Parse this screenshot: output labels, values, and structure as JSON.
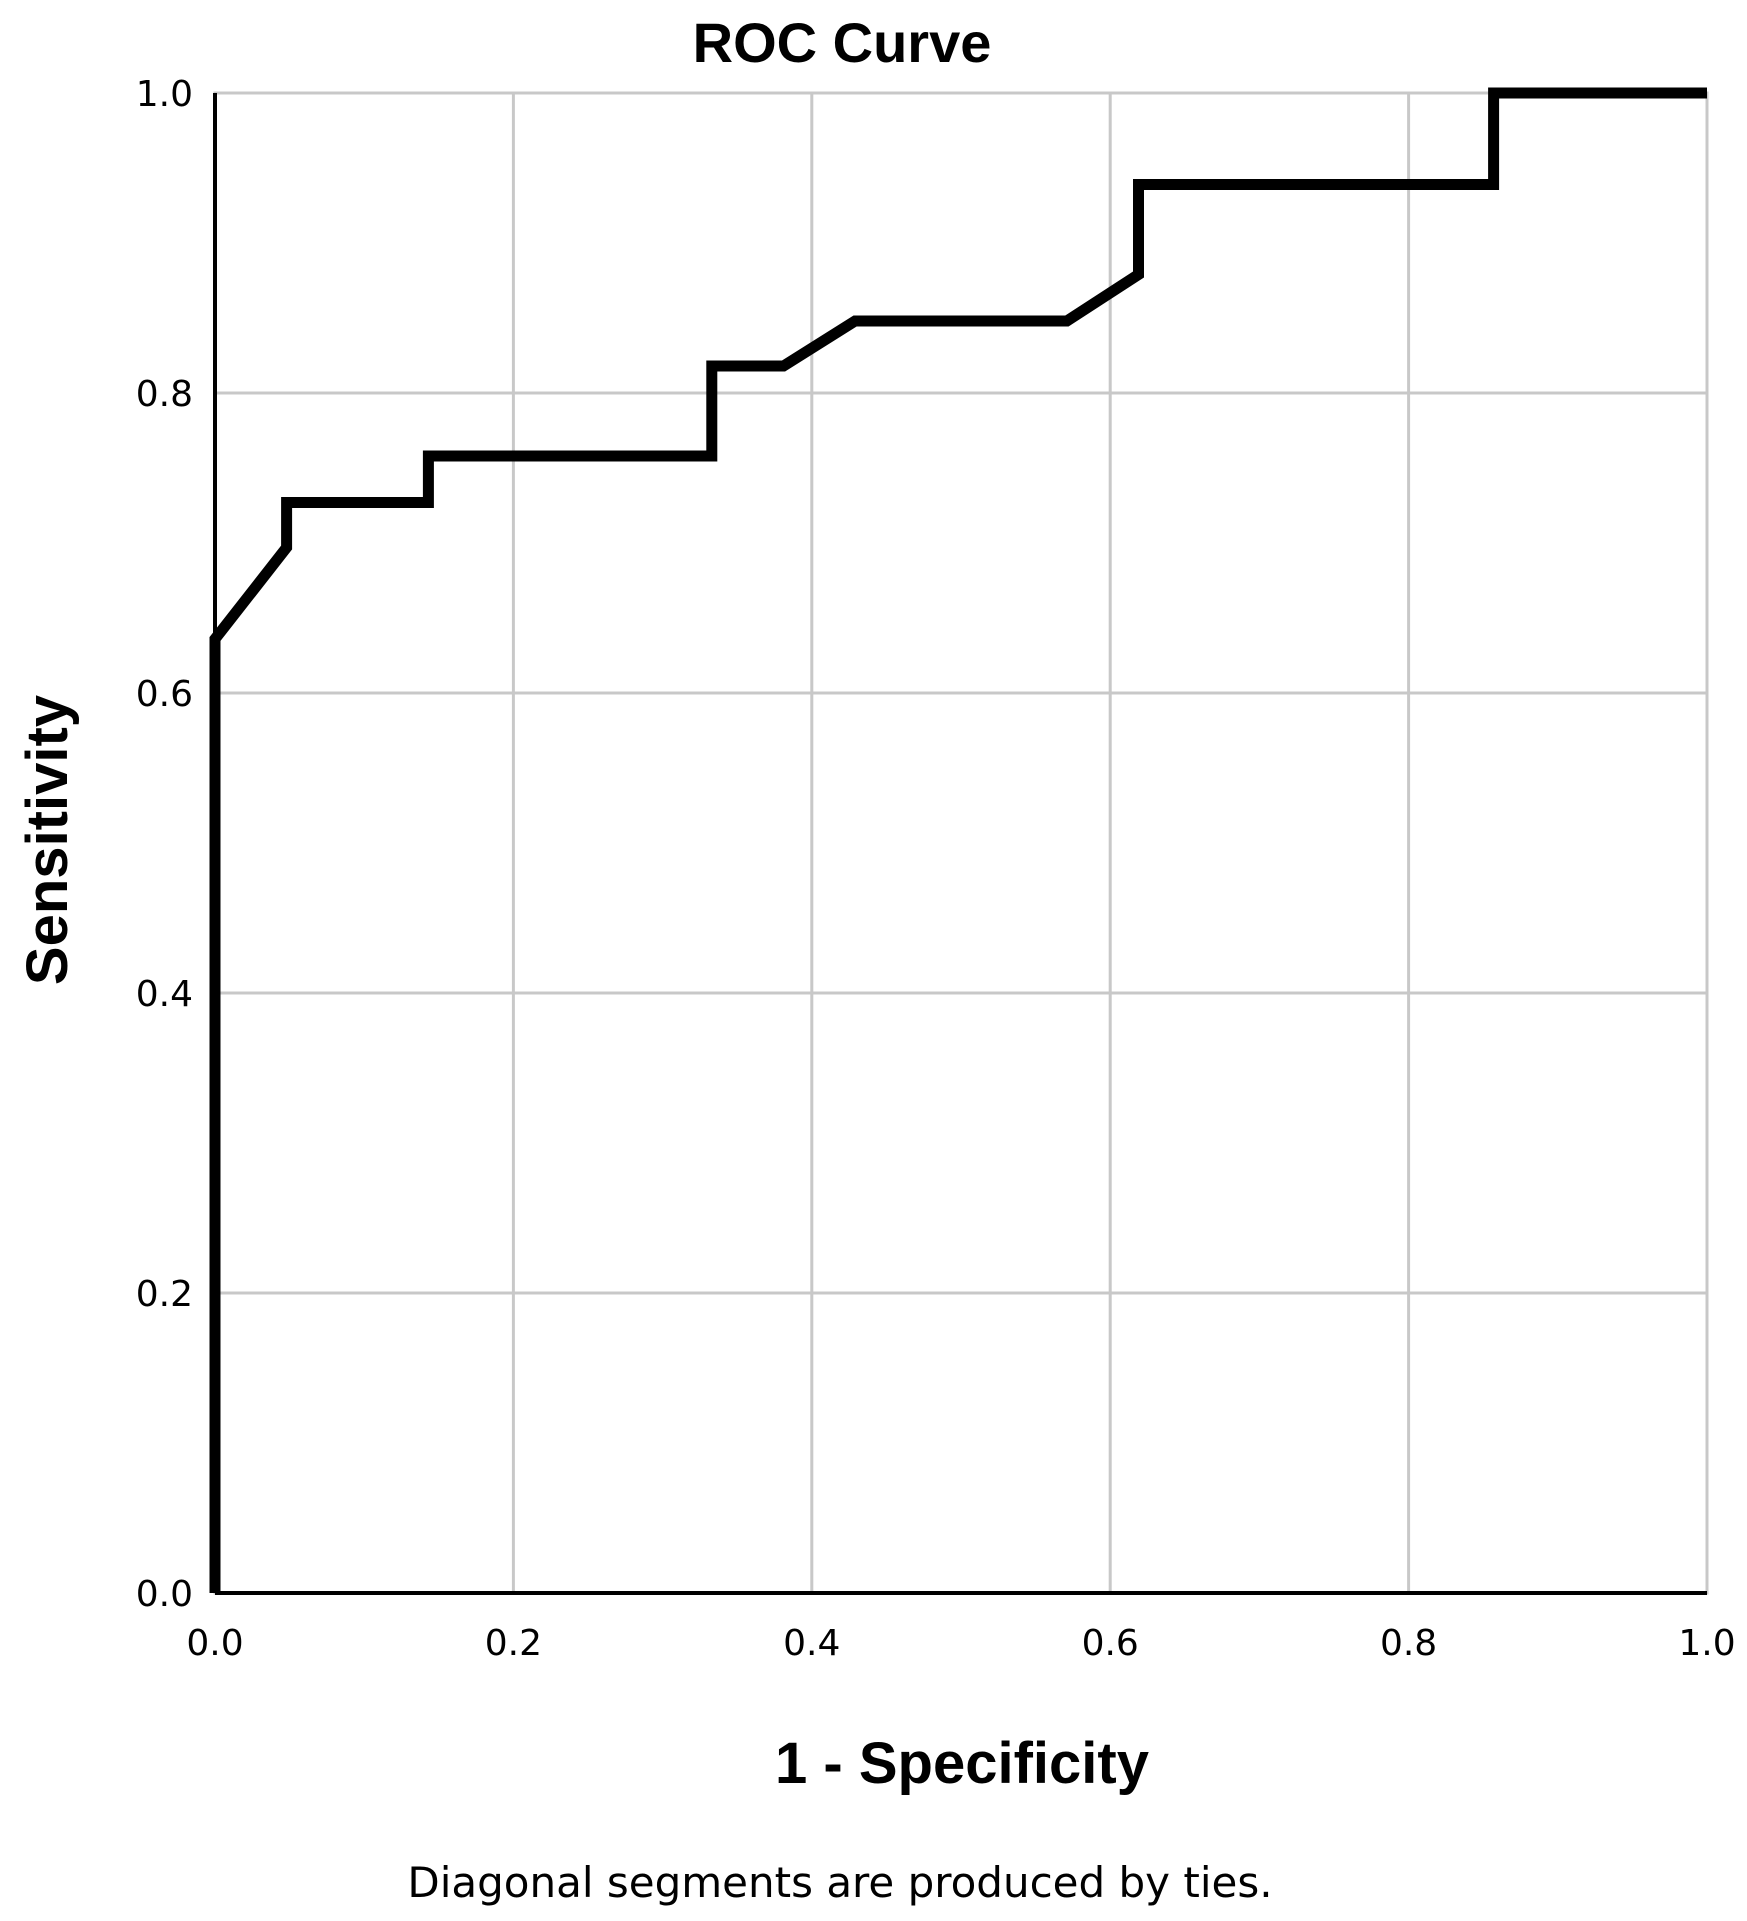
{
  "chart_data": {
    "type": "line",
    "title": "ROC Curve",
    "xlabel": "1 - Specificity",
    "ylabel": "Sensitivity",
    "xlim": [
      0,
      1
    ],
    "ylim": [
      0,
      1
    ],
    "xticks": [
      "0.0",
      "0.2",
      "0.4",
      "0.6",
      "0.8",
      "1.0"
    ],
    "yticks": [
      "0.0",
      "0.2",
      "0.4",
      "0.6",
      "0.8",
      "1.0"
    ],
    "grid": true,
    "footnote": "Diagonal segments are produced by ties.",
    "line_color": "#000000",
    "grid_color": "#c8c8c8",
    "series": [
      {
        "x": [
          0.0,
          0.0,
          0.048,
          0.048,
          0.143,
          0.143,
          0.333,
          0.333,
          0.381,
          0.429,
          0.571,
          0.619,
          0.619,
          0.857,
          0.857,
          1.0
        ],
        "y": [
          0.0,
          0.636,
          0.697,
          0.727,
          0.727,
          0.758,
          0.758,
          0.818,
          0.818,
          0.848,
          0.848,
          0.879,
          0.939,
          0.939,
          1.0,
          1.0
        ]
      }
    ]
  }
}
